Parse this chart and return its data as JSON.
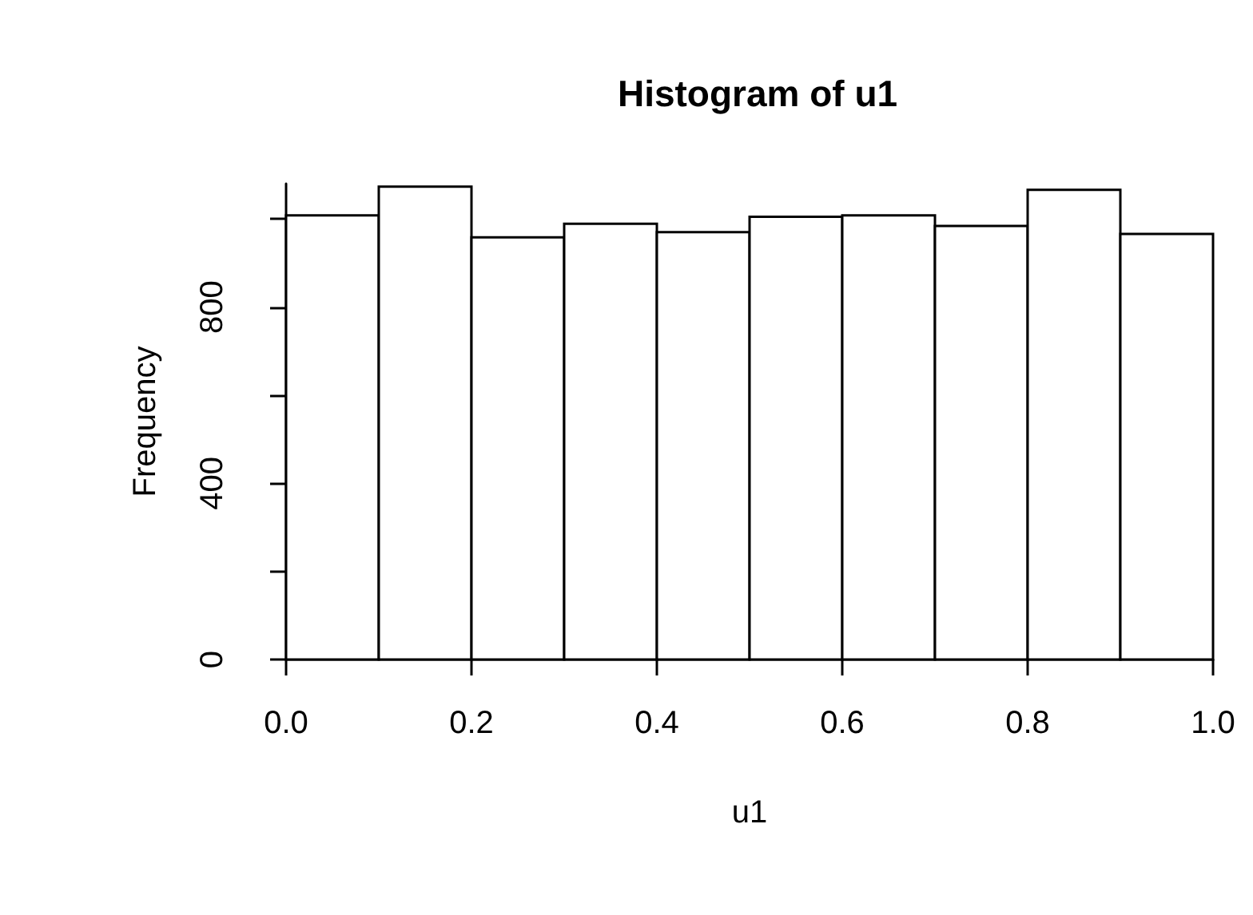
{
  "chart_data": {
    "type": "histogram",
    "title": "Histogram of u1",
    "xlabel": "u1",
    "ylabel": "Frequency",
    "bins": [
      0,
      0.1,
      0.2,
      0.3,
      0.4,
      0.5,
      0.6,
      0.7,
      0.8,
      0.9,
      1.0
    ],
    "values": [
      1008,
      1073,
      958,
      989,
      970,
      1005,
      1008,
      984,
      1066,
      966
    ],
    "color": "#ffffff",
    "xlim": [
      0,
      1
    ],
    "xticks": [
      {
        "value": 0,
        "label": "0.0"
      },
      0.2,
      0.4,
      0.6,
      0.8,
      {
        "value": 1,
        "label": "1.0"
      }
    ],
    "ylim": [
      0,
      1080
    ],
    "yticks": [
      0,
      {
        "value": 200,
        "label": null
      },
      400,
      {
        "value": 600,
        "label": null
      },
      800,
      {
        "value": 1000,
        "label": null
      }
    ],
    "grid": false
  }
}
